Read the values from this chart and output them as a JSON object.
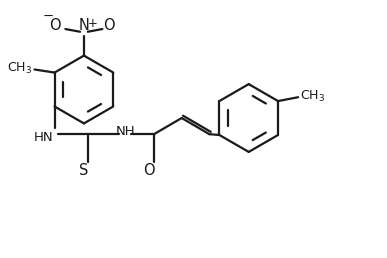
{
  "bg_color": "#ffffff",
  "line_color": "#1a1a1a",
  "line_width": 1.6,
  "font_size": 9.5,
  "figsize": [
    3.87,
    2.58
  ],
  "dpi": 100,
  "xlim": [
    0,
    10
  ],
  "ylim": [
    0,
    6.65
  ]
}
